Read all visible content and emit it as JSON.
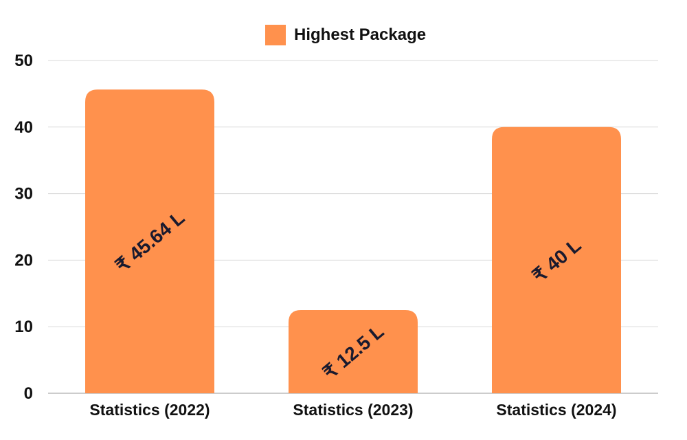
{
  "chart_data": {
    "type": "bar",
    "categories": [
      "Statistics (2022)",
      "Statistics (2023)",
      "Statistics (2024)"
    ],
    "series": [
      {
        "name": "Highest Package",
        "values": [
          45.64,
          12.5,
          40
        ]
      }
    ],
    "data_labels": [
      "₹ 45.64 L",
      "₹ 12.5 L",
      "₹ 40 L"
    ],
    "ylim": [
      0,
      50
    ],
    "yticks": [
      0,
      10,
      20,
      30,
      40,
      50
    ],
    "grid": true,
    "legend_position": "top-center",
    "colors": {
      "bar": "#FF914D",
      "grid": "#d9d9d9",
      "text": "#111111"
    }
  }
}
